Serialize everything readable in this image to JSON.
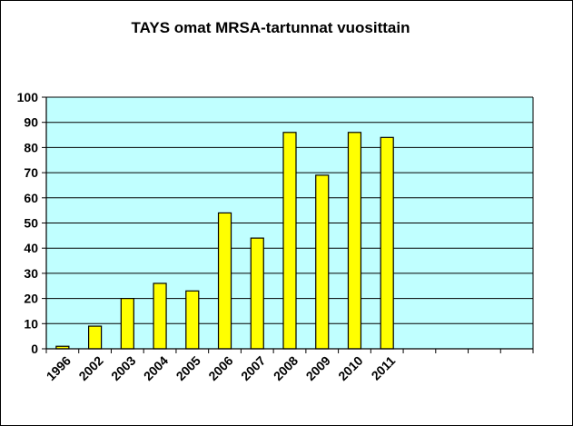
{
  "chart_data": {
    "type": "bar",
    "title": "TAYS omat MRSA-tartunnat vuosittain",
    "categories": [
      "1996",
      "2002",
      "2003",
      "2004",
      "2005",
      "2006",
      "2007",
      "2008",
      "2009",
      "2010",
      "2011",
      "",
      "",
      "",
      ""
    ],
    "values": [
      1,
      9,
      20,
      26,
      23,
      54,
      44,
      86,
      69,
      86,
      84,
      null,
      null,
      null,
      null
    ],
    "ylim": [
      0,
      100
    ],
    "yticks": [
      0,
      10,
      20,
      30,
      40,
      50,
      60,
      70,
      80,
      90,
      100
    ],
    "grid": true,
    "legend": "none",
    "colors": {
      "plot_background": "#c0ffff",
      "bar_fill": "#ffff00",
      "bar_stroke": "#000000",
      "grid": "#000000"
    }
  }
}
